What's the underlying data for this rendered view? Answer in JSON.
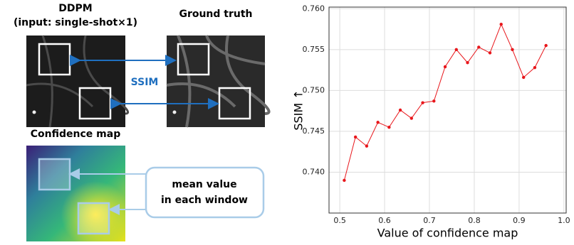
{
  "diagram": {
    "ddpm_title": "DDPM",
    "ddpm_subtitle": "(input: single-shot×1)",
    "gt_title": "Ground truth",
    "ssim_label": "SSIM",
    "conf_title": "Confidence map",
    "callout_line1": "mean value",
    "callout_line2": "in each window"
  },
  "chart_data": {
    "type": "line",
    "xlabel": "Value of confidence map",
    "ylabel": "SSIM ↑",
    "x": [
      0.51,
      0.535,
      0.56,
      0.585,
      0.61,
      0.635,
      0.66,
      0.685,
      0.71,
      0.735,
      0.76,
      0.785,
      0.81,
      0.835,
      0.86,
      0.885,
      0.91,
      0.935,
      0.96
    ],
    "series": [
      {
        "color": "#e8161b",
        "values": [
          0.739,
          0.7443,
          0.7432,
          0.7461,
          0.7455,
          0.7476,
          0.7466,
          0.7485,
          0.7487,
          0.7529,
          0.755,
          0.7534,
          0.7553,
          0.7546,
          0.7581,
          0.755,
          0.7516,
          0.7528,
          0.7555
        ]
      }
    ],
    "xlim": [
      0.476,
      1.005
    ],
    "ylim": [
      0.735,
      0.7602
    ],
    "xticks": [
      0.5,
      0.6,
      0.7,
      0.8,
      0.9,
      {
        "value": 1.0,
        "label": "1.0"
      }
    ],
    "yticks": [
      {
        "value": 0.74,
        "label": "0.740"
      },
      {
        "value": 0.745,
        "label": "0.745"
      },
      {
        "value": 0.75,
        "label": "0.750"
      },
      {
        "value": 0.755,
        "label": "0.755"
      },
      {
        "value": 0.76,
        "label": "0.760"
      }
    ],
    "grid": true
  }
}
